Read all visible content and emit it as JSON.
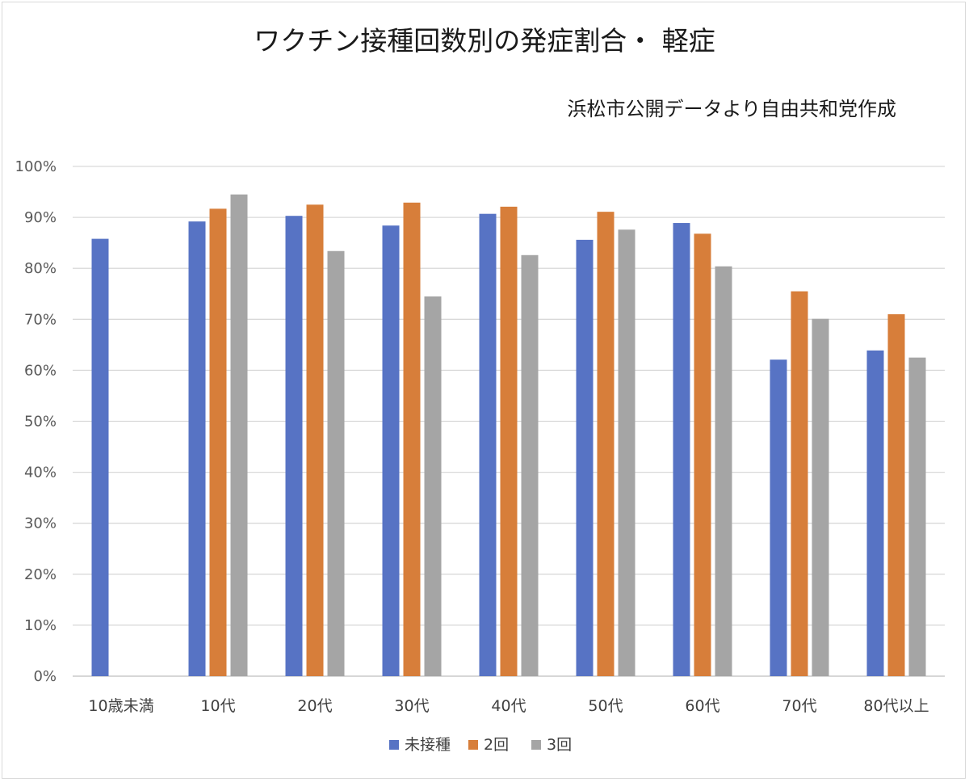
{
  "chart_data": {
    "type": "bar",
    "title": "ワクチン接種回数別の発症割合・ 軽症",
    "subtitle": "浜松市公開データより自由共和党作成",
    "categories": [
      "10歳未満",
      "10代",
      "20代",
      "30代",
      "40代",
      "50代",
      "60代",
      "70代",
      "80代以上"
    ],
    "series": [
      {
        "name": "未接種",
        "color": "#5773c4",
        "values": [
          85.8,
          89.2,
          90.3,
          88.4,
          90.7,
          85.6,
          88.9,
          62.1,
          63.9
        ]
      },
      {
        "name": "2回",
        "color": "#d77e3a",
        "values": [
          null,
          91.7,
          92.5,
          92.9,
          92.1,
          91.1,
          86.8,
          75.5,
          71.0
        ]
      },
      {
        "name": "3回",
        "color": "#a5a5a5",
        "values": [
          null,
          94.5,
          83.4,
          74.5,
          82.6,
          87.6,
          80.4,
          70.1,
          62.5
        ]
      }
    ],
    "ylim": [
      0,
      100
    ],
    "yticks": [
      "0%",
      "10%",
      "20%",
      "30%",
      "40%",
      "50%",
      "60%",
      "70%",
      "80%",
      "90%",
      "100%"
    ],
    "ytick_values": [
      0,
      10,
      20,
      30,
      40,
      50,
      60,
      70,
      80,
      90,
      100
    ],
    "grid": true,
    "legend_position": "bottom"
  }
}
